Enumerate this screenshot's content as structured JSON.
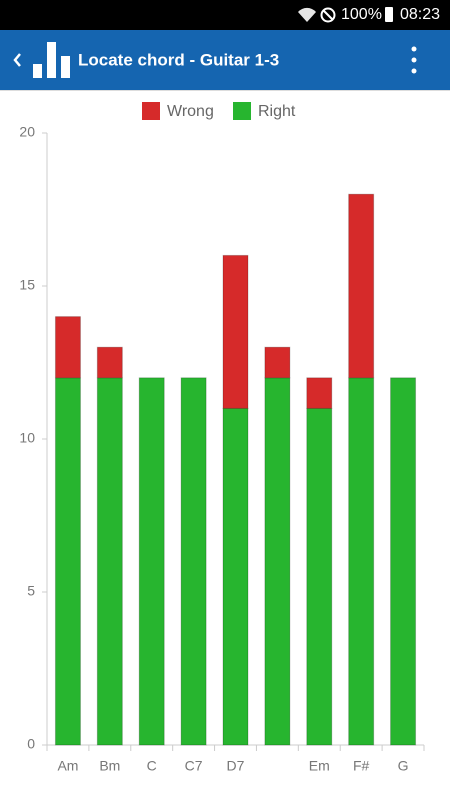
{
  "status_bar": {
    "battery": "100%",
    "time": "08:23"
  },
  "app_bar": {
    "title": "Locate chord - Guitar 1-3"
  },
  "chart_data": {
    "type": "bar",
    "stacked": true,
    "categories": [
      "Am",
      "Bm",
      "C",
      "C7",
      "D7",
      null,
      "Em",
      "F#",
      "G"
    ],
    "series": [
      {
        "name": "Wrong",
        "color": "#d62a2a",
        "values": [
          2,
          1,
          0,
          0,
          5,
          1,
          1,
          6,
          0
        ]
      },
      {
        "name": "Right",
        "color": "#27b52f",
        "values": [
          12,
          12,
          12,
          12,
          11,
          12,
          11,
          12,
          12
        ]
      }
    ],
    "ylim": [
      0,
      20
    ],
    "yticks": [
      0,
      5,
      10,
      15,
      20
    ],
    "grid": false,
    "legend": "top"
  }
}
